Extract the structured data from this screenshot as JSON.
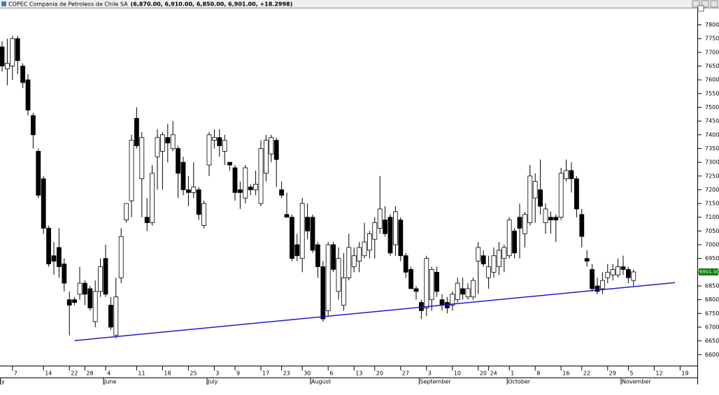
{
  "chart_data": {
    "type": "candlestick",
    "title": "COPEC Compania de Petroleos de Chile SA",
    "title_values": "(6,870.00, 6,910.00, 6,850.00, 6,901.00, +18.2998)",
    "ylim": [
      6560,
      7860
    ],
    "yticks": [
      6600,
      6650,
      6700,
      6750,
      6800,
      6850,
      6900,
      6950,
      7000,
      7050,
      7100,
      7150,
      7200,
      7250,
      7300,
      7350,
      7400,
      7450,
      7500,
      7550,
      7600,
      7650,
      7700,
      7750,
      7800
    ],
    "categories": [
      null,
      null,
      "7",
      null,
      null,
      null,
      null,
      null,
      "14",
      null,
      null,
      null,
      null,
      "22",
      null,
      null,
      "28",
      null,
      null,
      null,
      "4",
      null,
      null,
      null,
      null,
      null,
      "11",
      null,
      null,
      null,
      null,
      "18",
      null,
      null,
      null,
      null,
      "25",
      null,
      null,
      null,
      null,
      "3",
      null,
      null,
      null,
      "9",
      null,
      null,
      null,
      null,
      "17",
      null,
      null,
      null,
      "23",
      null,
      null,
      null,
      "30",
      null,
      null,
      null,
      null,
      "6",
      null,
      null,
      null,
      null,
      "13",
      null,
      null,
      null,
      "20",
      null,
      null,
      null,
      null,
      "27",
      null,
      null,
      null,
      null,
      "3",
      null,
      null,
      null,
      null,
      "10",
      null,
      null,
      null,
      null,
      "20",
      null,
      "24",
      null,
      null,
      null,
      "1",
      null,
      null,
      null,
      null,
      "8",
      null,
      null,
      null,
      null,
      "16",
      null,
      null,
      null,
      "22",
      null,
      null,
      null,
      null,
      "29",
      null,
      null,
      null,
      "5",
      null,
      null,
      null,
      null,
      "12",
      null,
      null,
      null,
      null,
      "19",
      null,
      null
    ],
    "months": [
      "ay",
      null,
      null,
      null,
      null,
      null,
      null,
      null,
      null,
      null,
      null,
      null,
      null,
      null,
      null,
      null,
      null,
      null,
      null,
      null,
      "June",
      null,
      null,
      null,
      null,
      null,
      null,
      null,
      null,
      null,
      null,
      null,
      null,
      null,
      null,
      null,
      null,
      null,
      null,
      null,
      "July",
      null,
      null,
      null,
      null,
      null,
      null,
      null,
      null,
      null,
      null,
      null,
      null,
      null,
      null,
      null,
      null,
      null,
      null,
      null,
      "August",
      null,
      null,
      null,
      null,
      null,
      null,
      null,
      null,
      null,
      null,
      null,
      null,
      null,
      null,
      null,
      null,
      null,
      null,
      null,
      null,
      "September",
      null,
      null,
      null,
      null,
      null,
      null,
      null,
      null,
      null,
      null,
      null,
      null,
      null,
      null,
      null,
      null,
      "October",
      null,
      null,
      null,
      null,
      null,
      null,
      null,
      null,
      null,
      null,
      null,
      null,
      null,
      null,
      null,
      null,
      null,
      null,
      null,
      null,
      null,
      "November",
      null,
      null,
      null,
      null,
      null,
      null,
      null,
      null,
      null,
      null,
      null,
      null,
      null
    ],
    "open": [
      7720,
      7640,
      7650,
      7750,
      7650,
      7600,
      7470,
      7340,
      7240,
      7060,
      6960,
      6990,
      6930,
      6800,
      6800,
      6820,
      6860,
      6840,
      6720,
      6830,
      6950,
      6780,
      6670,
      6880,
      7090,
      7160,
      7460,
      7240,
      7100,
      7080,
      7320,
      7340,
      7390,
      7350,
      7350,
      7300,
      7200,
      7190,
      7200,
      7070,
      7290,
      7380,
      7390,
      7340,
      7300,
      7280,
      7200,
      7170,
      7210,
      7200,
      7150,
      7260,
      7330,
      7380,
      7200,
      7110,
      7100,
      7000,
      6950,
      7100,
      7100,
      7000,
      6920,
      6760,
      7000,
      6830,
      6780,
      6880,
      6920,
      6940,
      6960,
      6980,
      7020,
      7060,
      7090,
      7100,
      7000,
      7090,
      6960,
      6910,
      6840,
      6790,
      6770,
      6800,
      6900,
      6800,
      6790,
      6780,
      6800,
      6840,
      6810,
      6810,
      6940,
      6960,
      6880,
      6900,
      6920,
      6950,
      6960,
      7050,
      7100,
      7040,
      7080,
      7170,
      7200,
      7080,
      7100,
      7100,
      7100,
      7240,
      7270,
      7240,
      7110,
      6950,
      6910,
      6850,
      6840,
      6880,
      6890,
      6890,
      6920,
      6910,
      6870,
      null,
      null,
      null,
      null,
      null,
      null,
      null,
      null,
      null,
      null,
      null
    ],
    "high": [
      7740,
      7750,
      7760,
      7760,
      7660,
      7620,
      7480,
      7350,
      7250,
      7070,
      7010,
      7060,
      6950,
      6830,
      6810,
      6920,
      6870,
      6850,
      6870,
      6950,
      7000,
      6810,
      6880,
      7060,
      7150,
      7400,
      7500,
      7410,
      7170,
      7290,
      7420,
      7410,
      7440,
      7450,
      7360,
      7320,
      7250,
      7300,
      7210,
      7160,
      7410,
      7420,
      7420,
      7400,
      7300,
      7290,
      7230,
      7290,
      7220,
      7270,
      7380,
      7400,
      7400,
      7390,
      7230,
      7190,
      7110,
      7040,
      7170,
      7150,
      7110,
      7010,
      6940,
      7010,
      7010,
      6990,
      6970,
      7040,
      6990,
      7010,
      7080,
      7050,
      7100,
      7250,
      7140,
      7110,
      7140,
      7100,
      6970,
      6920,
      6850,
      6800,
      6960,
      6920,
      6920,
      6820,
      6810,
      6830,
      6880,
      6880,
      6860,
      6880,
      7010,
      6980,
      6960,
      6990,
      7010,
      7000,
      7100,
      7060,
      7150,
      7120,
      7290,
      7260,
      7310,
      7150,
      7120,
      7110,
      7280,
      7310,
      7300,
      7250,
      7130,
      6980,
      6930,
      6880,
      6900,
      6930,
      6930,
      6950,
      6960,
      6920,
      6910,
      null,
      null,
      null,
      null,
      null,
      null,
      null,
      null,
      null,
      null,
      null
    ],
    "low": [
      7630,
      7580,
      7600,
      7620,
      7570,
      7470,
      7350,
      7170,
      7040,
      6920,
      6890,
      6880,
      6830,
      6670,
      6780,
      6800,
      6780,
      6760,
      6700,
      6810,
      6810,
      6690,
      6660,
      6860,
      7080,
      7100,
      7350,
      7100,
      7050,
      7070,
      7200,
      7200,
      7300,
      7340,
      7170,
      7180,
      7140,
      7170,
      7090,
      7060,
      7250,
      7350,
      7320,
      7290,
      7270,
      7160,
      7130,
      7150,
      7180,
      7180,
      7140,
      7230,
      7300,
      7210,
      7170,
      7100,
      6940,
      6940,
      6900,
      7020,
      6970,
      6880,
      6720,
      6740,
      6900,
      6800,
      6760,
      6870,
      6900,
      6900,
      6950,
      6950,
      6950,
      7040,
      7030,
      6960,
      6960,
      6940,
      6880,
      6840,
      6800,
      6730,
      6740,
      6760,
      6810,
      6760,
      6750,
      6760,
      6790,
      6800,
      6800,
      6800,
      6820,
      6920,
      6840,
      6880,
      6890,
      6900,
      6950,
      6950,
      6950,
      6990,
      7070,
      7080,
      7110,
      7040,
      7040,
      7010,
      7090,
      7230,
      7190,
      7100,
      6990,
      6920,
      6830,
      6820,
      6820,
      6860,
      6870,
      6880,
      6890,
      6860,
      6850,
      null,
      null,
      null,
      null,
      null,
      null,
      null,
      null,
      null,
      null,
      null
    ],
    "close": [
      7650,
      7660,
      7750,
      7670,
      7590,
      7490,
      7400,
      7180,
      7060,
      6930,
      6940,
      6920,
      6860,
      6780,
      6790,
      6860,
      6820,
      6770,
      6830,
      6920,
      6820,
      6700,
      6810,
      7030,
      7150,
      7380,
      7360,
      7390,
      7080,
      7260,
      7390,
      7400,
      7370,
      7400,
      7260,
      7200,
      7190,
      7210,
      7110,
      7150,
      7400,
      7390,
      7360,
      7380,
      7290,
      7190,
      7190,
      7280,
      7200,
      7220,
      7350,
      7380,
      7390,
      7310,
      7180,
      7100,
      6950,
      6960,
      7150,
      7050,
      6980,
      6920,
      6730,
      7000,
      6910,
      6950,
      6880,
      6990,
      6960,
      6990,
      7010,
      7040,
      7080,
      7130,
      7040,
      6970,
      7120,
      6960,
      6900,
      6840,
      6830,
      6760,
      6950,
      6910,
      6830,
      6780,
      6770,
      6820,
      6860,
      6820,
      6840,
      6870,
      6990,
      6930,
      6920,
      6960,
      6980,
      6990,
      7090,
      6970,
      7060,
      7110,
      7250,
      7230,
      7140,
      7130,
      7090,
      7090,
      7260,
      7270,
      7240,
      7130,
      7030,
      6940,
      6840,
      6830,
      6870,
      6900,
      6910,
      6920,
      6910,
      6880,
      6901,
      null,
      null,
      null,
      null,
      null,
      null,
      null,
      null,
      null,
      null,
      null
    ],
    "last_price": {
      "value": 6901,
      "label": "6901.00"
    },
    "trendline": {
      "color": "#1a1ad0",
      "x": [
        14,
        130
      ],
      "values": [
        6651,
        6862
      ]
    }
  }
}
